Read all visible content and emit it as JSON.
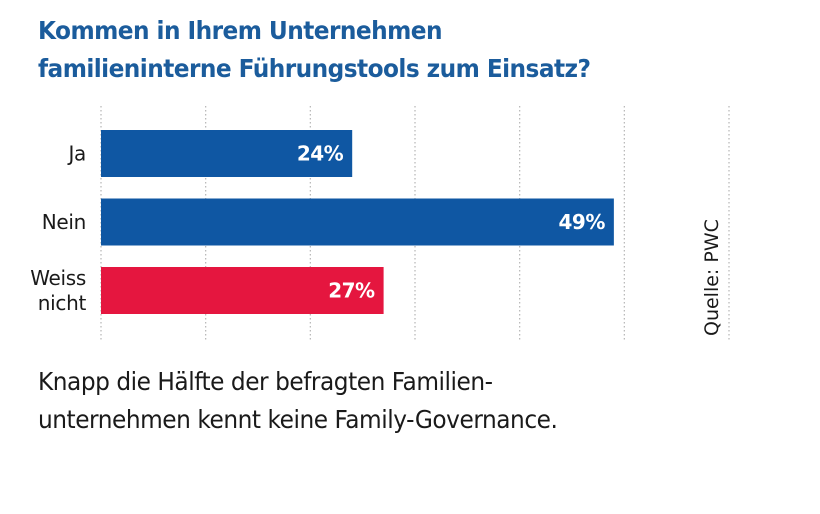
{
  "title": {
    "line1": "Kommen in Ihrem Unternehmen",
    "line2": "familieninterne Führungstools zum Einsatz?"
  },
  "caption": {
    "line1": "Knapp die Hälfte der befragten Familien-",
    "line2": "unternehmen kennt keine Family-Governance."
  },
  "colors": {
    "title": "#1b5c9c",
    "bar_blue": "#0f57a3",
    "bar_red": "#e5163f",
    "grid": "#b5b5b5",
    "label": "#1a1a1a",
    "value_label": "#ffffff"
  },
  "chart_data": {
    "type": "bar",
    "orientation": "horizontal",
    "title": "Kommen in Ihrem Unternehmen familieninterne Führungstools zum Einsatz?",
    "categories": [
      [
        "Ja"
      ],
      [
        "Nein"
      ],
      [
        "Weiss",
        "nicht"
      ]
    ],
    "values": [
      24,
      49,
      27
    ],
    "value_labels": [
      "24%",
      "49%",
      "27%"
    ],
    "bar_colors": [
      "#0f57a3",
      "#0f57a3",
      "#e5163f"
    ],
    "unit": "%",
    "xlabel": "",
    "ylabel": "",
    "xlim": [
      0,
      60
    ],
    "grid": true,
    "grid_step": 10,
    "grid_style": "dotted vertical",
    "source": "Quelle: PWC",
    "source_placement": "right, rotated vertical"
  }
}
